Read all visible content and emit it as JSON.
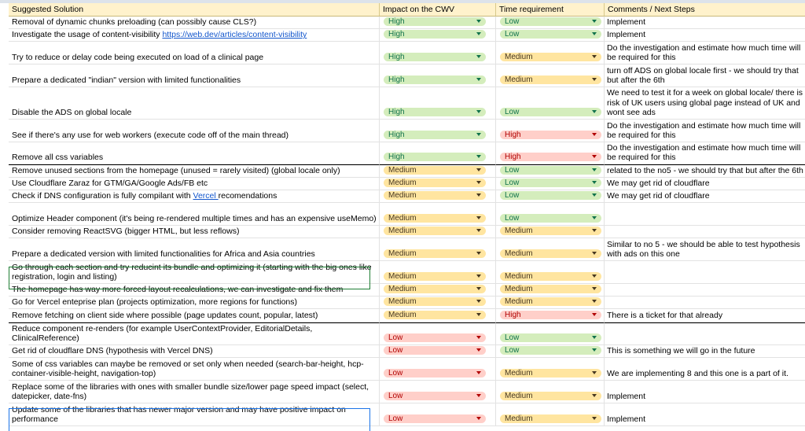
{
  "headers": [
    "Suggested Solution",
    "Impact on the CWV",
    "Time requirement",
    "Comments / Next Steps"
  ],
  "colors": {
    "header_bg": "#fff2cc",
    "high": "#d4edbc",
    "medium": "#ffe5a0",
    "low": "#ffcfc9",
    "link": "#1155cc"
  },
  "rows": [
    {
      "solution": "Removal of dynamic chunks preloading (can possibly cause CLS?)",
      "impact": "High",
      "impact_style": "high",
      "time": "Low",
      "time_style": "high",
      "comment": "Implement",
      "h": 16
    },
    {
      "solution": "Investigate the usage of content-visibility ",
      "link": "https://web.dev/articles/content-visibility",
      "impact": "High",
      "impact_style": "high",
      "time": "Low",
      "time_style": "high",
      "comment": "Implement",
      "h": 16
    },
    {
      "solution": "Try to reduce or delay code being executed on load of a clinical page",
      "impact": "High",
      "impact_style": "high",
      "time": "Medium",
      "time_style": "medium",
      "comment": "Do the investigation and estimate how much time will be required for this",
      "h": 29
    },
    {
      "solution": "Prepare a dedicated \"indian\" version with limited functionalities",
      "impact": "High",
      "impact_style": "high",
      "time": "Medium",
      "time_style": "medium",
      "comment": "turn off ADS on global locale first - we should try that but after the 6th",
      "h": 29
    },
    {
      "solution": "Disable the ADS on global locale",
      "impact": "High",
      "impact_style": "high",
      "time": "Low",
      "time_style": "high",
      "comment": "We need to test it for a week on global locale/ there is a risk of UK users using global page instead of UK and wont see ads",
      "h": 41
    },
    {
      "solution": "See if there's any use for web workers (execute code off of the main thread)",
      "impact": "High",
      "impact_style": "high",
      "time": "High",
      "time_style": "high-red",
      "comment": "Do the investigation and estimate how much time will be required for this",
      "h": 29
    },
    {
      "solution": "Remove all css variables",
      "impact": "High",
      "impact_style": "high",
      "time": "High",
      "time_style": "high-red",
      "comment": "Do the investigation and estimate how much time will be required for this",
      "h": 28
    },
    {
      "solution": "Remove unused sections from the homepage (unused = rarely visited) (global locale only)",
      "impact": "Medium",
      "impact_style": "medium",
      "time": "Low",
      "time_style": "high",
      "comment": "related to the no5 - we should try that but after the 6th",
      "h": 17,
      "sep": true
    },
    {
      "solution": "Use Cloudflare Zaraz for GTM/GA/Google Ads/FB etc",
      "impact": "Medium",
      "impact_style": "medium",
      "time": "Low",
      "time_style": "high",
      "comment": "We may get rid of cloudflare",
      "h": 16
    },
    {
      "solution": "Check if DNS configuration is fully compilant with ",
      "link": "Vercel ",
      "solution_tail": "recomendations",
      "impact": "Medium",
      "impact_style": "medium",
      "time": "Low",
      "time_style": "high",
      "comment": "We may get rid of cloudflare",
      "h": 16
    },
    {
      "solution": "Optimize Header component (it's being re-rendered multiple times and has an expensive useMemo)",
      "impact": "Medium",
      "impact_style": "medium",
      "time": "Low",
      "time_style": "high",
      "comment": "",
      "h": 29
    },
    {
      "solution": "Consider removing ReactSVG (bigger HTML, but less reflows)",
      "impact": "Medium",
      "impact_style": "medium",
      "time": "Medium",
      "time_style": "medium",
      "comment": "",
      "h": 16
    },
    {
      "solution": "Prepare a dedicated version with limited functionalities for Africa and Asia countries",
      "impact": "Medium",
      "impact_style": "medium",
      "time": "Medium",
      "time_style": "medium",
      "comment": "Similar to no 5 - we should be able to test hypothesis with ads on this one",
      "h": 29
    },
    {
      "solution": "Go through each section and try reducint its bundle and optimizing it (starting with the big ones like registration, login and listing)",
      "impact": "Medium",
      "impact_style": "medium",
      "time": "Medium",
      "time_style": "medium",
      "comment": "",
      "h": 29
    },
    {
      "solution": "The homepage has way more forced layout recalculations, we can investigate and fix them",
      "impact": "Medium",
      "impact_style": "medium",
      "time": "Medium",
      "time_style": "medium",
      "comment": "",
      "h": 16
    },
    {
      "solution": "Go for Vercel enteprise plan (projects optimization, more regions for functions)",
      "impact": "Medium",
      "impact_style": "medium",
      "time": "Medium",
      "time_style": "medium",
      "comment": "",
      "h": 16
    },
    {
      "solution": "Remove fetching on client side where possible (page updates count, popular, latest)",
      "impact": "Medium",
      "impact_style": "medium",
      "time": "High",
      "time_style": "high-red",
      "comment": "There is a ticket for that already",
      "h": 17
    },
    {
      "solution": "Reduce component re-renders (for example UserContextProvider, EditorialDetails, ClinicalReference)",
      "impact": "Low",
      "impact_style": "low-red",
      "time": "Low",
      "time_style": "high",
      "comment": "",
      "h": 29,
      "sep": true
    },
    {
      "solution": "Get rid of cloudflare DNS (hypothesis with Vercel DNS)",
      "impact": "Low",
      "impact_style": "low-red",
      "time": "Low",
      "time_style": "high",
      "comment": "This is something we will go in the future",
      "h": 16
    },
    {
      "solution": "Some of css variables can maybe be removed or set only when needed (search-bar-height, hcp-container-visible-height, navigation-top)",
      "impact": "Low",
      "impact_style": "low-red",
      "time": "Medium",
      "time_style": "medium",
      "comment": "We are implementing 8 and this one is a part of it.",
      "h": 29
    },
    {
      "solution": "Replace some of the libraries with ones with smaller bundle size/lower page speed impact (select, datepicker, date-fns)",
      "impact": "Low",
      "impact_style": "low-red",
      "time": "Medium",
      "time_style": "medium",
      "comment": "Implement",
      "h": 29
    },
    {
      "solution": "Update some of the libraries that has newer major version and may have positive impact on performance",
      "impact": "Low",
      "impact_style": "low-red",
      "time": "Medium",
      "time_style": "medium",
      "comment": "Implement",
      "h": 29
    }
  ]
}
